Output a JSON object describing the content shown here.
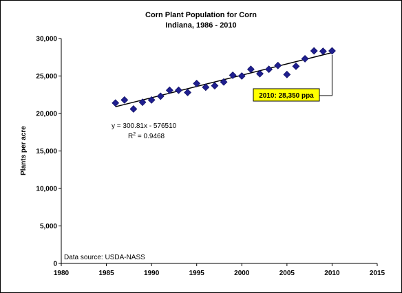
{
  "chart_data": {
    "type": "scatter",
    "title": "Corn Plant Population for Corn",
    "subtitle": "Indiana, 1986 - 2010",
    "xlabel": "",
    "ylabel": "Plants per acre",
    "xlim": [
      1980,
      2015
    ],
    "ylim": [
      0,
      30000
    ],
    "x_ticks": [
      1980,
      1985,
      1990,
      1995,
      2000,
      2005,
      2010,
      2015
    ],
    "y_ticks": [
      0,
      5000,
      10000,
      15000,
      20000,
      25000,
      30000
    ],
    "x_tick_labels": [
      "1980",
      "1985",
      "1990",
      "1995",
      "2000",
      "2005",
      "2010",
      "2015"
    ],
    "y_tick_labels": [
      "0",
      "5,000",
      "10,000",
      "15,000",
      "20,000",
      "25,000",
      "30,000"
    ],
    "grid": false,
    "marker": "diamond",
    "marker_color": "#1f1f8f",
    "points": [
      {
        "x": 1986,
        "y": 21400
      },
      {
        "x": 1987,
        "y": 21800
      },
      {
        "x": 1988,
        "y": 20600
      },
      {
        "x": 1989,
        "y": 21500
      },
      {
        "x": 1990,
        "y": 21800
      },
      {
        "x": 1991,
        "y": 22300
      },
      {
        "x": 1992,
        "y": 23100
      },
      {
        "x": 1993,
        "y": 23100
      },
      {
        "x": 1994,
        "y": 22800
      },
      {
        "x": 1995,
        "y": 24000
      },
      {
        "x": 1996,
        "y": 23500
      },
      {
        "x": 1997,
        "y": 23700
      },
      {
        "x": 1998,
        "y": 24200
      },
      {
        "x": 1999,
        "y": 25100
      },
      {
        "x": 2000,
        "y": 25000
      },
      {
        "x": 2001,
        "y": 25900
      },
      {
        "x": 2002,
        "y": 25300
      },
      {
        "x": 2003,
        "y": 25900
      },
      {
        "x": 2004,
        "y": 26400
      },
      {
        "x": 2005,
        "y": 25200
      },
      {
        "x": 2006,
        "y": 26300
      },
      {
        "x": 2007,
        "y": 27300
      },
      {
        "x": 2008,
        "y": 28350
      },
      {
        "x": 2009,
        "y": 28300
      },
      {
        "x": 2010,
        "y": 28350
      }
    ],
    "trendline": {
      "slope": 300.81,
      "intercept": -576510,
      "x_range": [
        1986,
        2010
      ]
    },
    "equation_text": "y = 300.81x - 576510",
    "r2_prefix": "R",
    "r2_sup": "2",
    "r2_value": " = 0.9468",
    "source_text": "Data source: USDA-NASS",
    "callout": {
      "text": "2010: 28,350 ppa",
      "x": 2010,
      "y": 28350,
      "fill": "#ffff00"
    }
  }
}
